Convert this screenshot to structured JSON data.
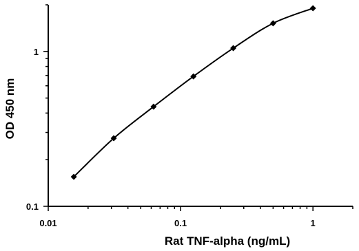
{
  "chart_data": {
    "type": "line",
    "xlabel": "Rat TNF-alpha  (ng/mL)",
    "ylabel": "OD 450 nm",
    "x_scale": "log",
    "y_scale": "log",
    "xlim": [
      0.01,
      2
    ],
    "ylim": [
      0.1,
      2
    ],
    "x_ticks": [
      {
        "value": 0.01,
        "label": "0.01"
      },
      {
        "value": 0.1,
        "label": "0.1"
      },
      {
        "value": 1,
        "label": "1"
      }
    ],
    "y_ticks": [
      {
        "value": 0.1,
        "label": "0.1"
      },
      {
        "value": 1,
        "label": "1"
      }
    ],
    "grid": false,
    "legend": "none",
    "marker": "diamond",
    "line_color": "#000000",
    "series": [
      {
        "x": [
          0.0156,
          0.03125,
          0.0625,
          0.125,
          0.25,
          0.5,
          1
        ],
        "y": [
          0.155,
          0.275,
          0.44,
          0.69,
          1.05,
          1.52,
          1.9
        ]
      }
    ]
  }
}
